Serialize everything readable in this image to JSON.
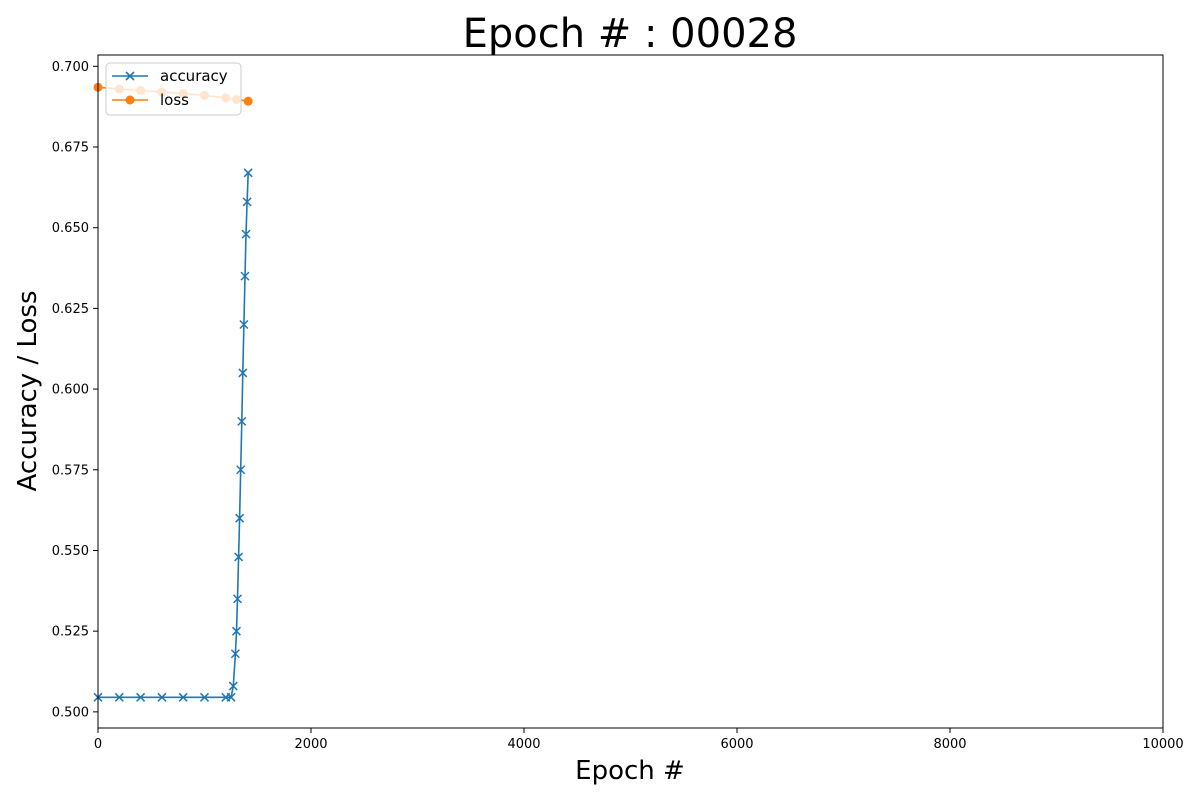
{
  "chart_data": {
    "type": "line",
    "title": "Epoch # : 00028",
    "xlabel": "Epoch #",
    "ylabel": "Accuracy / Loss",
    "xlim": [
      0,
      10000
    ],
    "ylim": [
      0.495,
      0.7035
    ],
    "xticks": [
      0,
      2000,
      4000,
      6000,
      8000,
      10000
    ],
    "yticks": [
      0.5,
      0.525,
      0.55,
      0.575,
      0.6,
      0.625,
      0.65,
      0.675,
      0.7
    ],
    "xtick_labels": [
      "0",
      "2000",
      "4000",
      "6000",
      "8000",
      "10000"
    ],
    "ytick_labels": [
      "0.500",
      "0.525",
      "0.550",
      "0.575",
      "0.600",
      "0.625",
      "0.650",
      "0.675",
      "0.700"
    ],
    "grid": false,
    "legend_position": "top-left",
    "series": [
      {
        "name": "accuracy",
        "color": "#1f77b4",
        "marker": "x",
        "x": [
          0,
          200,
          400,
          600,
          800,
          1000,
          1200,
          1250,
          1270,
          1290,
          1300,
          1310,
          1320,
          1330,
          1340,
          1350,
          1360,
          1370,
          1380,
          1390,
          1400,
          1410
        ],
        "y": [
          0.5045,
          0.5045,
          0.5045,
          0.5045,
          0.5045,
          0.5045,
          0.5045,
          0.5045,
          0.508,
          0.518,
          0.525,
          0.535,
          0.548,
          0.56,
          0.575,
          0.59,
          0.605,
          0.62,
          0.635,
          0.648,
          0.658,
          0.667
        ]
      },
      {
        "name": "loss",
        "color": "#ff7f0e",
        "marker": "o",
        "x": [
          0,
          200,
          400,
          600,
          800,
          1000,
          1200,
          1300,
          1410
        ],
        "y": [
          0.6935,
          0.693,
          0.6925,
          0.692,
          0.6915,
          0.691,
          0.6902,
          0.6897,
          0.6892
        ]
      }
    ]
  }
}
